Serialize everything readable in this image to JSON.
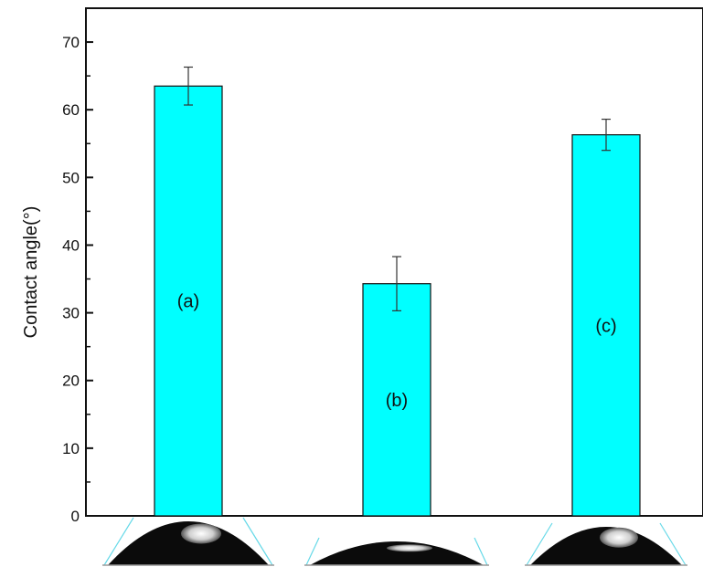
{
  "chart_data": {
    "type": "bar",
    "title": "",
    "xlabel": "",
    "ylabel": "Contact angle(°)",
    "ylim": [
      0,
      75
    ],
    "yticks": [
      0,
      10,
      20,
      30,
      40,
      50,
      60,
      70
    ],
    "grid": false,
    "legend": "none",
    "bar_color": "#00ffff",
    "bar_edge_color": "#111111",
    "categories": [
      "(a)",
      "(b)",
      "(c)"
    ],
    "values": [
      63.5,
      34.3,
      56.3
    ],
    "error": [
      2.8,
      4.0,
      2.3
    ],
    "droplet_images": [
      "droplet-a",
      "droplet-b",
      "droplet-c"
    ]
  }
}
